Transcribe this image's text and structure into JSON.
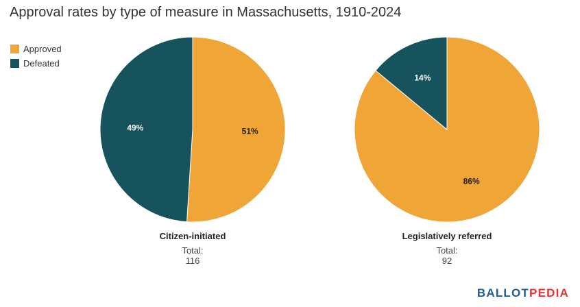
{
  "title": "Approval rates by type of measure in Massachusetts, 1910-2024",
  "legend": [
    {
      "label": "Approved",
      "color": "#f0a537"
    },
    {
      "label": "Defeated",
      "color": "#16535c"
    }
  ],
  "brand": {
    "part1": "BALLOT",
    "part2": "PEDIA"
  },
  "chart_data": [
    {
      "type": "pie",
      "name": "Citizen-initiated",
      "total_label": "Total:",
      "total_value": "116",
      "slices": [
        {
          "label": "Approved",
          "value": 51,
          "display": "51%",
          "color": "#f0a537",
          "text_color": "#222222"
        },
        {
          "label": "Defeated",
          "value": 49,
          "display": "49%",
          "color": "#16535c",
          "text_color": "#ffffff"
        }
      ]
    },
    {
      "type": "pie",
      "name": "Legislatively referred",
      "total_label": "Total:",
      "total_value": "92",
      "slices": [
        {
          "label": "Approved",
          "value": 86,
          "display": "86%",
          "color": "#f0a537",
          "text_color": "#222222"
        },
        {
          "label": "Defeated",
          "value": 14,
          "display": "14%",
          "color": "#16535c",
          "text_color": "#ffffff"
        }
      ]
    }
  ]
}
